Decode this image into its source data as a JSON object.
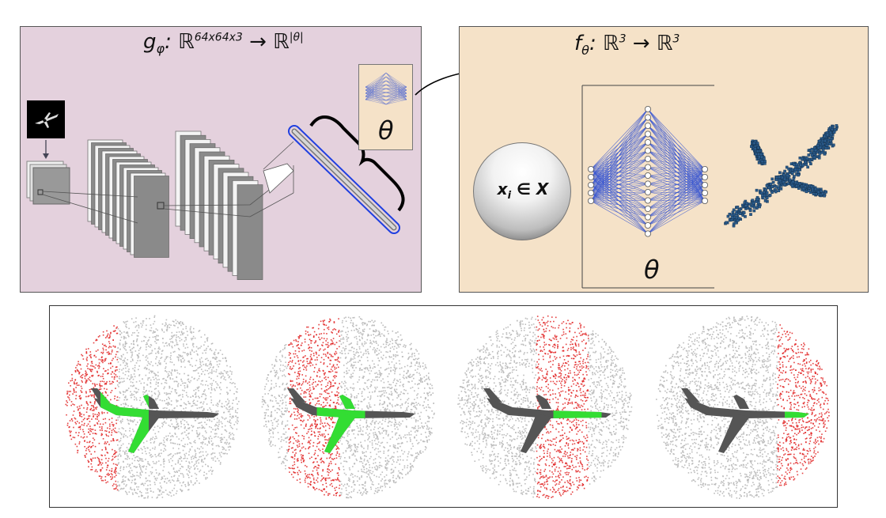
{
  "encoder_panel": {
    "formula": "g_φ: ℝ^64x64x3 → ℝ^|θ|",
    "formula_parts": {
      "fn": "g",
      "sub": "φ",
      "colon": ":",
      "domain_set": "ℝ",
      "domain_exp": "64x64x3",
      "arrow": "→",
      "codomain_set": "ℝ",
      "codomain_exp": "|θ|"
    },
    "inset_symbol": "θ",
    "background": "#e4d1dd"
  },
  "decoder_panel": {
    "formula": "f_θ: ℝ^3 → ℝ^3",
    "formula_parts": {
      "fn": "f",
      "sub": "θ",
      "colon": ":",
      "domain_set": "ℝ",
      "domain_exp": "3",
      "arrow": "→",
      "codomain_set": "ℝ",
      "codomain_exp": "3"
    },
    "input_label": "x_i ∈ X",
    "input_parts": {
      "var": "x",
      "sub": "i",
      "rest": " ∈ X"
    },
    "network_symbol": "θ",
    "background": "#f5e2c8"
  },
  "colors": {
    "network_blue": "#2f4fd1",
    "highlight_blue": "#1f3fe0",
    "point_red": "#e02020",
    "point_green": "#33dd33",
    "point_grey": "#bdbdbd",
    "airplane_dark": "#555555",
    "cloud_blue": "#2a5a8a"
  },
  "icons": [
    "airplane-thumbnail-icon",
    "airplane-point-cloud-icon",
    "arrow-icon",
    "network-icon"
  ],
  "bottom_views": [
    {
      "name": "view-1",
      "red_band": [
        0.0,
        0.3
      ]
    },
    {
      "name": "view-2",
      "red_band": [
        0.15,
        0.45
      ]
    },
    {
      "name": "view-3",
      "red_band": [
        0.45,
        0.75
      ]
    },
    {
      "name": "view-4",
      "red_band": [
        0.7,
        1.0
      ]
    }
  ]
}
